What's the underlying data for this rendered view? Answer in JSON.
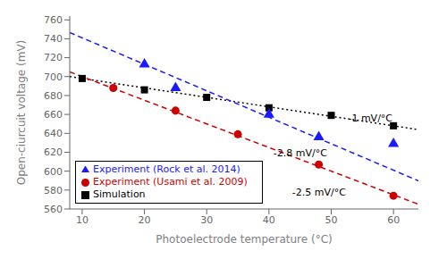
{
  "chart_data": {
    "type": "scatter",
    "xlabel": "Photoelectrode temperature (°C)",
    "ylabel": "Open-ciurcuit voltage (mV)",
    "xlim": [
      8,
      64
    ],
    "ylim": [
      560,
      764
    ],
    "xticks": [
      10,
      20,
      30,
      40,
      50,
      60
    ],
    "yticks": [
      560,
      580,
      600,
      620,
      640,
      660,
      680,
      700,
      720,
      740,
      760
    ],
    "legend": "lower left",
    "series": [
      {
        "type": "line",
        "color": "#000000",
        "line_style": "dotted",
        "x": [
          8,
          64
        ],
        "values": [
          700,
          644
        ]
      },
      {
        "type": "line",
        "color": "#1a1aff",
        "line_style": "dashed",
        "x": [
          8,
          64
        ],
        "values": [
          746.6,
          589.8
        ]
      },
      {
        "type": "line",
        "color": "#cc0000",
        "line_style": "dashed",
        "x": [
          8,
          64
        ],
        "values": [
          705,
          565
        ]
      },
      {
        "type": "scatter",
        "name": "Simulation",
        "color": "#000000",
        "marker": "square",
        "x": [
          10,
          20,
          30,
          40,
          50,
          60
        ],
        "values": [
          698,
          686,
          678,
          667,
          659,
          648
        ]
      },
      {
        "type": "scatter",
        "name": "Experiment (Rock et al. 2014)",
        "color": "#1a1aff",
        "marker": "triangle",
        "x": [
          20,
          25,
          40,
          48,
          60
        ],
        "values": [
          713,
          688,
          660,
          636,
          629
        ]
      },
      {
        "type": "scatter",
        "name": "Experiment (Usami et al. 2009)",
        "color": "#cc0000",
        "marker": "circle",
        "x": [
          15,
          25,
          35,
          48,
          60
        ],
        "values": [
          688,
          664,
          639,
          607,
          574
        ]
      }
    ],
    "annotations": [
      {
        "text": "-1 mV/°C",
        "x": 52,
        "y": 656,
        "color": "#000000"
      },
      {
        "text": "-2.8 mV/°C",
        "x": 40,
        "y": 619,
        "color": "#000000"
      },
      {
        "text": "-2.5 mV/°C",
        "x": 43,
        "y": 578,
        "color": "#000000"
      }
    ]
  }
}
